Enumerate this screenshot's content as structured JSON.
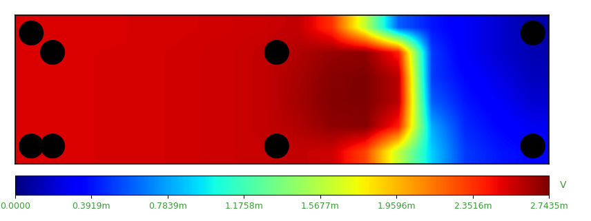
{
  "chart_data": {
    "type": "heatmap",
    "cells": [
      [
        0.00252,
        0.00252,
        0.00252,
        0.00253,
        0.00253,
        0.00254,
        0.00255,
        0.00256,
        0.00258,
        0.00235,
        0.0016,
        0.0006,
        0.0004,
        0.0003,
        0.0002,
        0.0001
      ],
      [
        0.00252,
        0.00252,
        0.00253,
        0.00253,
        0.00254,
        0.00255,
        0.00256,
        0.00258,
        0.00262,
        0.00268,
        0.0027,
        0.0024,
        0.0005,
        0.0003,
        0.0002,
        0.00012
      ],
      [
        0.00252,
        0.00252,
        0.00253,
        0.00253,
        0.00254,
        0.00255,
        0.00256,
        0.00258,
        0.00264,
        0.00272,
        0.00274,
        0.0026,
        0.0005,
        0.00035,
        0.00025,
        0.00015
      ],
      [
        0.00252,
        0.00252,
        0.00253,
        0.00253,
        0.00254,
        0.00255,
        0.00256,
        0.00258,
        0.00265,
        0.00273,
        0.00274,
        0.0026,
        0.0006,
        0.0004,
        0.0003,
        0.0002
      ],
      [
        0.00252,
        0.00252,
        0.00253,
        0.00253,
        0.00254,
        0.00255,
        0.00256,
        0.00258,
        0.00262,
        0.0027,
        0.00272,
        0.0024,
        0.0008,
        0.00045,
        0.00035,
        0.00028
      ],
      [
        0.00252,
        0.00252,
        0.00253,
        0.00253,
        0.00254,
        0.00255,
        0.00256,
        0.00257,
        0.00258,
        0.00255,
        0.0023,
        0.0016,
        0.0009,
        0.0005,
        0.0004,
        0.00035
      ]
    ],
    "colorbar": {
      "lim": [
        0.0,
        0.0027435
      ],
      "ticks": [
        {
          "value": 0.0,
          "label": "0.0000"
        },
        {
          "value": 0.0003919,
          "label": "0.3919m"
        },
        {
          "value": 0.0007839,
          "label": "0.7839m"
        },
        {
          "value": 0.0011758,
          "label": "1.1758m"
        },
        {
          "value": 0.0015677,
          "label": "1.5677m"
        },
        {
          "value": 0.0019596,
          "label": "1.9596m"
        },
        {
          "value": 0.0023516,
          "label": "2.3516m"
        },
        {
          "value": 0.0027435,
          "label": "2.7435m"
        }
      ],
      "label": "V"
    },
    "tick_labels": false
  }
}
